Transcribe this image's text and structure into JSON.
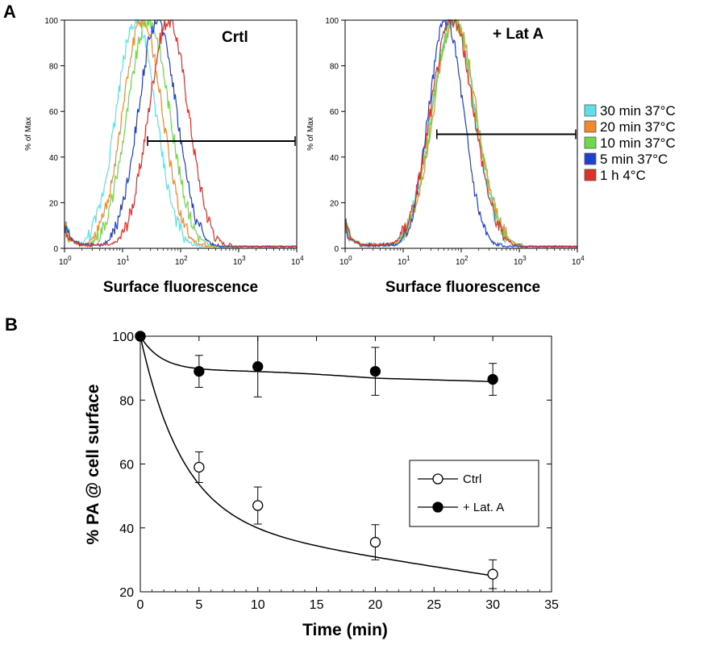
{
  "panels": {
    "a": "A",
    "b": "B"
  },
  "chart_data": [
    {
      "type": "line",
      "title": "Crtl",
      "xlabel": "Surface fluorescence",
      "ylabel": "% of Max",
      "xscale": "log",
      "xlim": [
        1,
        10000
      ],
      "ylim": [
        0,
        100
      ],
      "x_ticks": [
        "0",
        "1",
        "2",
        "3",
        "4"
      ],
      "y_ticks": [
        "0",
        "20",
        "40",
        "60",
        "80",
        "100"
      ],
      "gate": {
        "x_start": 27,
        "x_end": 10000,
        "y": 47
      },
      "series": [
        {
          "name": "30 min 37°C",
          "color": "#5fe0e8",
          "peak_x": 17,
          "width_decades": 0.34
        },
        {
          "name": "20 min 37°C",
          "color": "#f08a2c",
          "peak_x": 22,
          "width_decades": 0.34
        },
        {
          "name": "10 min 37°C",
          "color": "#6fd84a",
          "peak_x": 28,
          "width_decades": 0.36
        },
        {
          "name": "5 min 37°C",
          "color": "#1f3fd0",
          "peak_x": 40,
          "width_decades": 0.33
        },
        {
          "name": "1 h 4°C",
          "color": "#e0302a",
          "peak_x": 62,
          "width_decades": 0.34
        }
      ]
    },
    {
      "type": "line",
      "title": "+ Lat A",
      "xlabel": "Surface fluorescence",
      "ylabel": "% of Max",
      "xscale": "log",
      "xlim": [
        1,
        10000
      ],
      "ylim": [
        0,
        100
      ],
      "x_ticks": [
        "0",
        "1",
        "2",
        "3",
        "4"
      ],
      "y_ticks": [
        "0",
        "20",
        "40",
        "60",
        "80",
        "100"
      ],
      "gate": {
        "x_start": 38,
        "x_end": 10000,
        "y": 50
      },
      "series": [
        {
          "name": "30 min 37°C",
          "color": "#5fe0e8",
          "peak_x": 72,
          "width_decades": 0.37
        },
        {
          "name": "20 min 37°C",
          "color": "#f08a2c",
          "peak_x": 78,
          "width_decades": 0.37
        },
        {
          "name": "10 min 37°C",
          "color": "#6fd84a",
          "peak_x": 75,
          "width_decades": 0.37
        },
        {
          "name": "5 min 37°C",
          "color": "#1f3fd0",
          "peak_x": 55,
          "width_decades": 0.3
        },
        {
          "name": "1 h 4°C",
          "color": "#e0302a",
          "peak_x": 70,
          "width_decades": 0.37
        }
      ]
    },
    {
      "type": "scatter",
      "xlabel": "Time (min)",
      "ylabel": "% PA @ cell surface",
      "xlim": [
        0,
        35
      ],
      "ylim": [
        20,
        100
      ],
      "x_ticks": [
        0,
        5,
        10,
        15,
        20,
        25,
        30,
        35
      ],
      "y_ticks": [
        20,
        40,
        60,
        80,
        100
      ],
      "legend_position": "bottom-right",
      "series": [
        {
          "name": "Ctrl",
          "marker": "open-circle",
          "x": [
            0,
            5,
            10,
            20,
            30
          ],
          "y": [
            100,
            59,
            47,
            35.5,
            25.5
          ],
          "err": [
            0,
            4.8,
            5.8,
            5.5,
            4.5
          ]
        },
        {
          "name": "+ Lat. A",
          "marker": "filled-circle",
          "x": [
            0,
            5,
            10,
            20,
            30
          ],
          "y": [
            100,
            89,
            90.5,
            89,
            86.5
          ],
          "err": [
            0,
            5,
            9.5,
            7.5,
            5
          ]
        }
      ]
    }
  ]
}
